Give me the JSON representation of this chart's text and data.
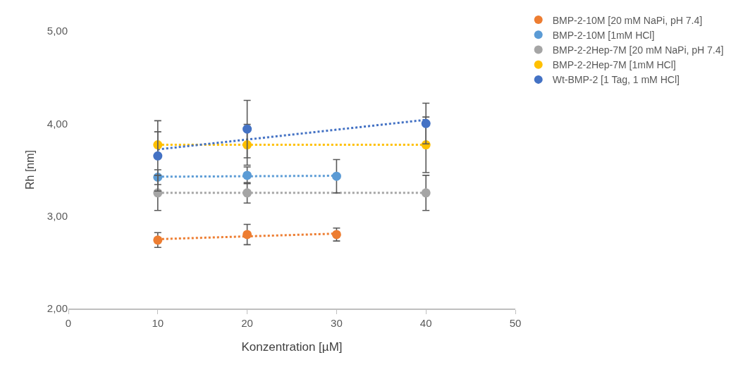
{
  "chart_data": {
    "type": "scatter",
    "xlabel": "Konzentration [µM]",
    "ylabel": "Rh [nm]",
    "xlim": [
      0,
      50
    ],
    "xticks": [
      0,
      10,
      20,
      30,
      40,
      50
    ],
    "ylim": [
      2,
      5
    ],
    "yticks": [
      {
        "value": 2,
        "label": "2,00"
      },
      {
        "value": 3,
        "label": "3,00"
      },
      {
        "value": 4,
        "label": "4,00"
      },
      {
        "value": 5,
        "label": "5,00"
      }
    ],
    "grid": false,
    "legend": "top right",
    "marker": "circle",
    "series": [
      {
        "name": "BMP-2-10M [20 mM NaPi, pH 7.4]",
        "color": "#ed7d31",
        "x": [
          10,
          20,
          30
        ],
        "values": [
          2.74,
          2.8,
          2.8
        ],
        "errors": [
          0.08,
          0.11,
          0.07
        ]
      },
      {
        "name": "BMP-2-10M [1mM HCl]",
        "color": "#5b9bd5",
        "x": [
          10,
          20,
          30
        ],
        "values": [
          3.42,
          3.44,
          3.43
        ],
        "errors": [
          0.08,
          0.09,
          0.18
        ]
      },
      {
        "name": "BMP-2-2Hep-7M [20 mM NaPi, pH 7.4]",
        "color": "#a5a5a5",
        "x": [
          10,
          20,
          40
        ],
        "values": [
          3.25,
          3.25,
          3.25
        ],
        "errors": [
          0.19,
          0.11,
          0.19
        ]
      },
      {
        "name": "BMP-2-2Hep-7M [1mM HCl]",
        "color": "#ffc000",
        "x": [
          10,
          20,
          40
        ],
        "values": [
          3.77,
          3.77,
          3.77
        ],
        "errors": [
          0.14,
          0.22,
          0.3
        ]
      },
      {
        "name": "Wt-BMP-2 [1 Tag, 1 mM HCl]",
        "color": "#4472c4",
        "x": [
          10,
          20,
          40
        ],
        "values": [
          3.65,
          3.94,
          4.0
        ],
        "errors": [
          0.38,
          0.31,
          0.22
        ]
      },
      {
        "type": "line",
        "marker": "none",
        "line_style": "dotted",
        "color": "#ed7d31",
        "x": [
          10,
          30
        ],
        "values": [
          2.75,
          2.81
        ]
      },
      {
        "type": "line",
        "marker": "none",
        "line_style": "dotted",
        "color": "#5b9bd5",
        "x": [
          10,
          30
        ],
        "values": [
          3.425,
          3.435
        ]
      },
      {
        "type": "line",
        "marker": "none",
        "line_style": "dotted",
        "color": "#a5a5a5",
        "x": [
          10,
          40
        ],
        "values": [
          3.25,
          3.25
        ]
      },
      {
        "type": "line",
        "marker": "none",
        "line_style": "dotted",
        "color": "#ffc000",
        "x": [
          10,
          40
        ],
        "values": [
          3.77,
          3.77
        ]
      },
      {
        "type": "line",
        "marker": "none",
        "line_style": "dotted",
        "color": "#4472c4",
        "x": [
          10,
          40
        ],
        "values": [
          3.72,
          4.04
        ]
      }
    ]
  }
}
